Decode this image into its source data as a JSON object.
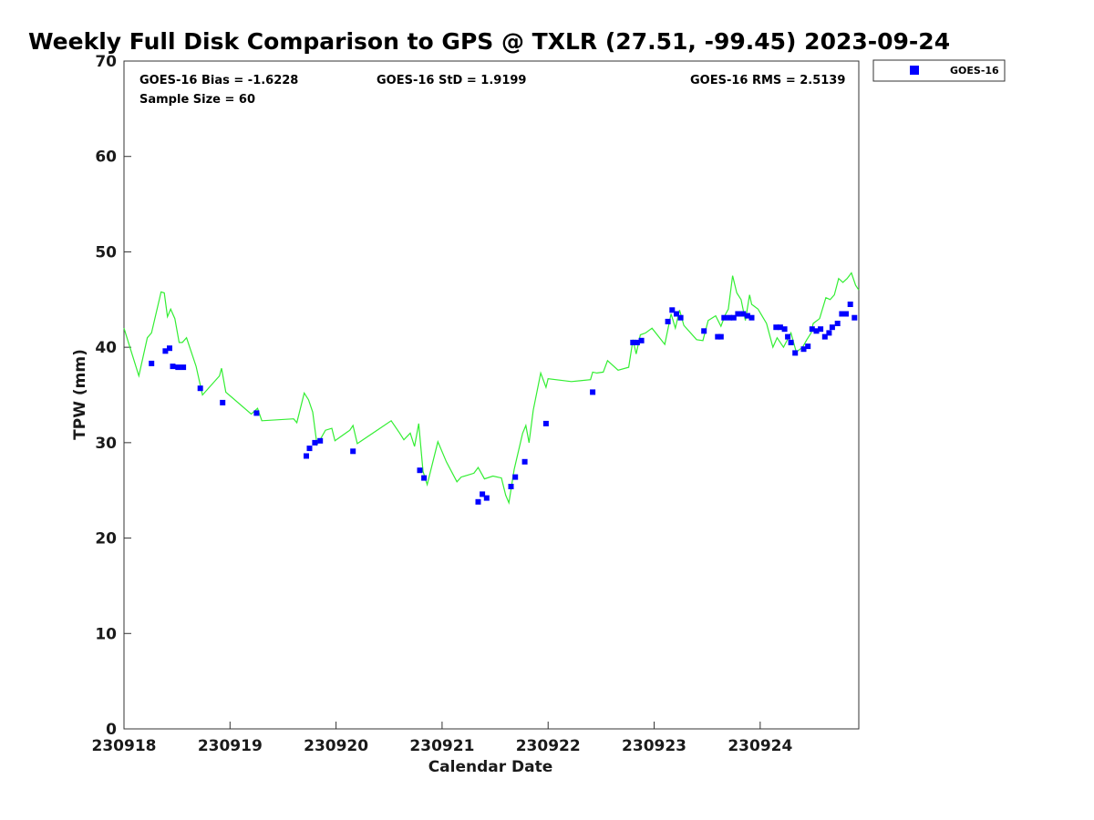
{
  "chart_data": {
    "type": "scatter",
    "title": "Weekly Full Disk Comparison to GPS @ TXLR (27.51, -99.45) 2023-09-24",
    "xlabel": "Calendar Date",
    "ylabel": "TPW (mm)",
    "xlim": [
      230918,
      230924.93
    ],
    "ylim": [
      0,
      70
    ],
    "x_ticks": [
      230918,
      230919,
      230920,
      230921,
      230922,
      230923,
      230924
    ],
    "x_tick_labels": [
      "230918",
      "230919",
      "230920",
      "230921",
      "230922",
      "230923",
      "230924"
    ],
    "y_ticks": [
      0,
      10,
      20,
      30,
      40,
      50,
      60,
      70
    ],
    "y_tick_labels": [
      "0",
      "10",
      "20",
      "30",
      "40",
      "50",
      "60",
      "70"
    ],
    "grid": false,
    "legend_position": "top-right",
    "stats": {
      "bias": "GOES-16 Bias = -1.6228",
      "std": "GOES-16 StD = 1.9199",
      "rms": "GOES-16 RMS = 2.5139",
      "sample": "Sample Size = 60"
    },
    "series": [
      {
        "name": "GOES-16",
        "kind": "scatter",
        "color": "#0000ff",
        "points": [
          [
            230918.26,
            38.3
          ],
          [
            230918.39,
            39.6
          ],
          [
            230918.43,
            39.9
          ],
          [
            230918.46,
            38.0
          ],
          [
            230918.51,
            37.9
          ],
          [
            230918.56,
            37.9
          ],
          [
            230918.72,
            35.7
          ],
          [
            230918.93,
            34.2
          ],
          [
            230919.25,
            33.1
          ],
          [
            230919.72,
            28.6
          ],
          [
            230919.75,
            29.4
          ],
          [
            230919.8,
            30.0
          ],
          [
            230919.85,
            30.2
          ],
          [
            230920.16,
            29.1
          ],
          [
            230920.79,
            27.1
          ],
          [
            230920.83,
            26.3
          ],
          [
            230921.34,
            23.8
          ],
          [
            230921.38,
            24.6
          ],
          [
            230921.42,
            24.2
          ],
          [
            230921.65,
            25.4
          ],
          [
            230921.69,
            26.4
          ],
          [
            230921.78,
            28.0
          ],
          [
            230921.98,
            32.0
          ],
          [
            230922.42,
            35.3
          ],
          [
            230922.8,
            40.5
          ],
          [
            230922.84,
            40.5
          ],
          [
            230922.88,
            40.7
          ],
          [
            230923.13,
            42.7
          ],
          [
            230923.17,
            43.9
          ],
          [
            230923.21,
            43.5
          ],
          [
            230923.25,
            43.1
          ],
          [
            230923.47,
            41.7
          ],
          [
            230923.6,
            41.1
          ],
          [
            230923.63,
            41.1
          ],
          [
            230923.66,
            43.1
          ],
          [
            230923.71,
            43.1
          ],
          [
            230923.75,
            43.1
          ],
          [
            230923.79,
            43.5
          ],
          [
            230923.84,
            43.5
          ],
          [
            230923.88,
            43.3
          ],
          [
            230923.92,
            43.1
          ],
          [
            230924.15,
            42.1
          ],
          [
            230924.19,
            42.1
          ],
          [
            230924.23,
            41.9
          ],
          [
            230924.26,
            41.1
          ],
          [
            230924.29,
            40.5
          ],
          [
            230924.33,
            39.4
          ],
          [
            230924.41,
            39.8
          ],
          [
            230924.45,
            40.1
          ],
          [
            230924.49,
            41.9
          ],
          [
            230924.53,
            41.7
          ],
          [
            230924.57,
            41.9
          ],
          [
            230924.61,
            41.1
          ],
          [
            230924.65,
            41.5
          ],
          [
            230924.68,
            42.1
          ],
          [
            230924.73,
            42.5
          ],
          [
            230924.77,
            43.5
          ],
          [
            230924.81,
            43.5
          ],
          [
            230924.85,
            44.5
          ],
          [
            230924.89,
            43.1
          ]
        ]
      },
      {
        "name": "",
        "kind": "line",
        "color": "#33ee33",
        "points": [
          [
            230918.0,
            42.0
          ],
          [
            230918.14,
            37.0
          ],
          [
            230918.22,
            41.0
          ],
          [
            230918.26,
            41.5
          ],
          [
            230918.35,
            45.8
          ],
          [
            230918.38,
            45.7
          ],
          [
            230918.41,
            43.2
          ],
          [
            230918.44,
            44.0
          ],
          [
            230918.48,
            43.0
          ],
          [
            230918.52,
            40.5
          ],
          [
            230918.55,
            40.5
          ],
          [
            230918.59,
            41.0
          ],
          [
            230918.68,
            38.0
          ],
          [
            230918.74,
            35.0
          ],
          [
            230918.9,
            37.0
          ],
          [
            230918.92,
            37.8
          ],
          [
            230918.96,
            35.3
          ],
          [
            230919.2,
            33.0
          ],
          [
            230919.26,
            33.6
          ],
          [
            230919.3,
            32.3
          ],
          [
            230919.6,
            32.5
          ],
          [
            230919.63,
            32.1
          ],
          [
            230919.7,
            35.2
          ],
          [
            230919.74,
            34.5
          ],
          [
            230919.78,
            33.2
          ],
          [
            230919.82,
            29.8
          ],
          [
            230919.86,
            30.5
          ],
          [
            230919.9,
            31.3
          ],
          [
            230919.96,
            31.5
          ],
          [
            230919.99,
            30.2
          ],
          [
            230920.13,
            31.3
          ],
          [
            230920.16,
            31.8
          ],
          [
            230920.2,
            29.9
          ],
          [
            230920.4,
            31.4
          ],
          [
            230920.52,
            32.3
          ],
          [
            230920.6,
            31.0
          ],
          [
            230920.64,
            30.3
          ],
          [
            230920.7,
            31.0
          ],
          [
            230920.74,
            29.6
          ],
          [
            230920.78,
            32.0
          ],
          [
            230920.82,
            27.0
          ],
          [
            230920.86,
            25.6
          ],
          [
            230920.96,
            30.1
          ],
          [
            230921.04,
            28.0
          ],
          [
            230921.14,
            25.9
          ],
          [
            230921.18,
            26.4
          ],
          [
            230921.3,
            26.8
          ],
          [
            230921.34,
            27.4
          ],
          [
            230921.4,
            26.2
          ],
          [
            230921.48,
            26.5
          ],
          [
            230921.56,
            26.3
          ],
          [
            230921.6,
            24.5
          ],
          [
            230921.63,
            23.7
          ],
          [
            230921.68,
            27.2
          ],
          [
            230921.76,
            31.0
          ],
          [
            230921.79,
            31.8
          ],
          [
            230921.82,
            30.0
          ],
          [
            230921.86,
            33.4
          ],
          [
            230921.93,
            37.3
          ],
          [
            230921.98,
            35.8
          ],
          [
            230922.0,
            36.7
          ],
          [
            230922.22,
            36.4
          ],
          [
            230922.4,
            36.6
          ],
          [
            230922.42,
            37.4
          ],
          [
            230922.46,
            37.3
          ],
          [
            230922.52,
            37.4
          ],
          [
            230922.56,
            38.6
          ],
          [
            230922.66,
            37.6
          ],
          [
            230922.76,
            37.9
          ],
          [
            230922.8,
            40.8
          ],
          [
            230922.83,
            39.3
          ],
          [
            230922.87,
            41.3
          ],
          [
            230922.92,
            41.5
          ],
          [
            230922.98,
            42.0
          ],
          [
            230923.1,
            40.3
          ],
          [
            230923.16,
            43.5
          ],
          [
            230923.2,
            42.0
          ],
          [
            230923.24,
            43.9
          ],
          [
            230923.28,
            42.3
          ],
          [
            230923.4,
            40.8
          ],
          [
            230923.46,
            40.7
          ],
          [
            230923.51,
            42.8
          ],
          [
            230923.58,
            43.3
          ],
          [
            230923.63,
            42.2
          ],
          [
            230923.67,
            43.4
          ],
          [
            230923.7,
            44.0
          ],
          [
            230923.74,
            47.5
          ],
          [
            230923.78,
            45.7
          ],
          [
            230923.82,
            45.0
          ],
          [
            230923.86,
            42.8
          ],
          [
            230923.9,
            45.5
          ],
          [
            230923.92,
            44.5
          ],
          [
            230923.98,
            44.0
          ],
          [
            230924.06,
            42.5
          ],
          [
            230924.12,
            40.0
          ],
          [
            230924.16,
            41.0
          ],
          [
            230924.22,
            40.0
          ],
          [
            230924.29,
            41.5
          ],
          [
            230924.34,
            39.5
          ],
          [
            230924.4,
            40.0
          ],
          [
            230924.44,
            40.8
          ],
          [
            230924.48,
            41.5
          ],
          [
            230924.5,
            42.5
          ],
          [
            230924.56,
            43.0
          ],
          [
            230924.62,
            45.2
          ],
          [
            230924.66,
            45.0
          ],
          [
            230924.7,
            45.5
          ],
          [
            230924.74,
            47.2
          ],
          [
            230924.78,
            46.8
          ],
          [
            230924.82,
            47.2
          ],
          [
            230924.86,
            47.8
          ],
          [
            230924.9,
            46.5
          ],
          [
            230924.93,
            46.0
          ]
        ]
      }
    ]
  }
}
